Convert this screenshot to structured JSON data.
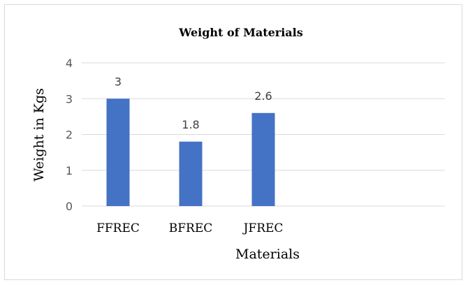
{
  "chart_data": {
    "type": "bar",
    "title": "Weight of Materials",
    "xlabel": "Materials",
    "ylabel": "Weight in Kgs",
    "categories": [
      "FFREC",
      "BFREC",
      "JFREC"
    ],
    "values": [
      3,
      1.8,
      2.6
    ],
    "value_labels": [
      "3",
      "1.8",
      "2.6"
    ],
    "ylim": [
      0,
      4
    ],
    "yticks": [
      "0",
      "1",
      "2",
      "3",
      "4"
    ],
    "grid": true,
    "legend": "none",
    "bar_color": "#4472c4",
    "grid_color": "#d9d9d9"
  }
}
